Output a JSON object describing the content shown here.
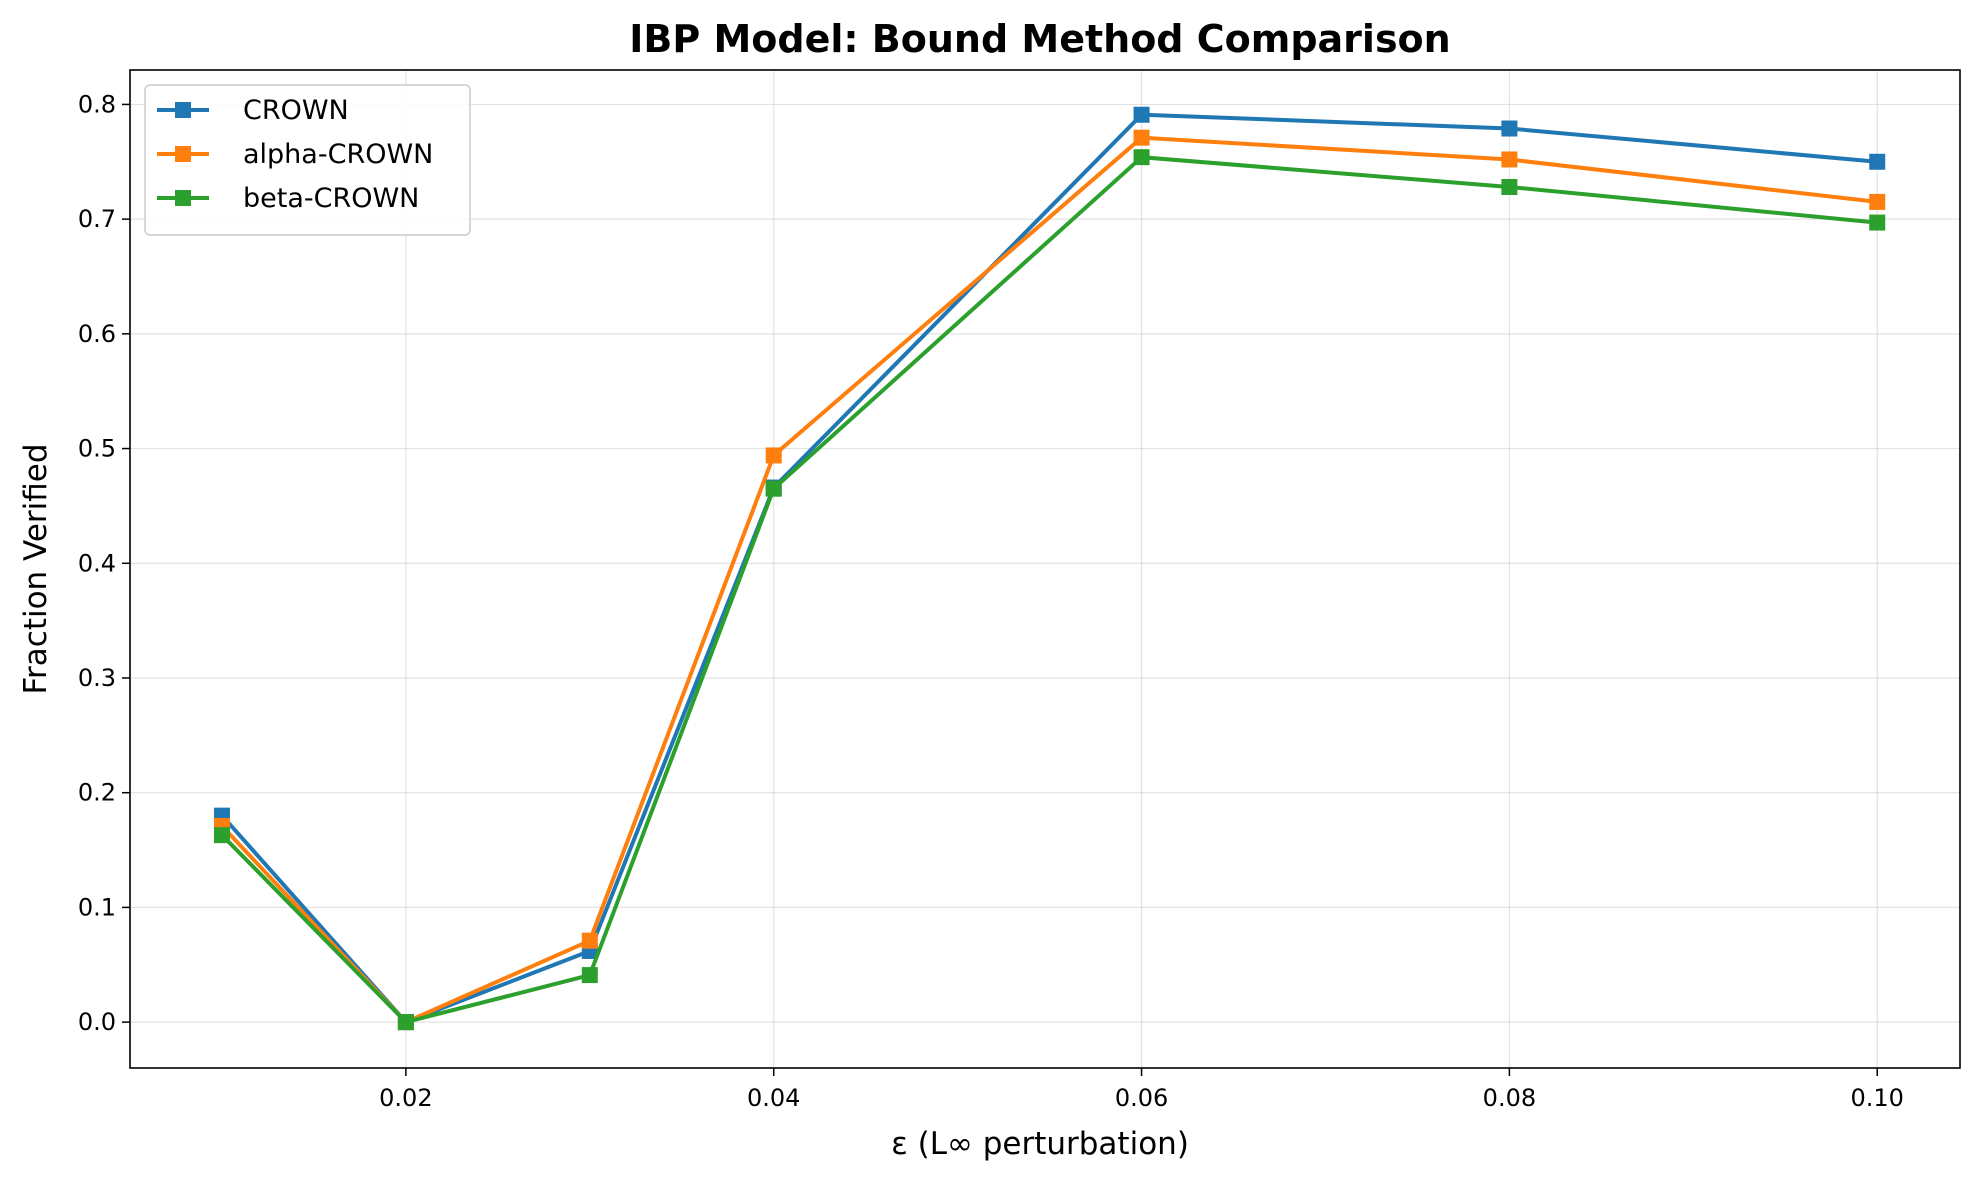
{
  "chart_data": {
    "type": "line",
    "title": "IBP Model: Bound Method Comparison",
    "xlabel": "ε (L∞ perturbation)",
    "ylabel": "Fraction Verified",
    "x": [
      0.01,
      0.02,
      0.03,
      0.04,
      0.06,
      0.08,
      0.1
    ],
    "xticks": [
      0.02,
      0.04,
      0.06,
      0.08,
      0.1
    ],
    "xtick_labels": [
      "0.02",
      "0.04",
      "0.06",
      "0.08",
      "0.10"
    ],
    "yticks": [
      0.0,
      0.1,
      0.2,
      0.3,
      0.4,
      0.5,
      0.6,
      0.7,
      0.8
    ],
    "ytick_labels": [
      "0.0",
      "0.1",
      "0.2",
      "0.3",
      "0.4",
      "0.5",
      "0.6",
      "0.7",
      "0.8"
    ],
    "xlim": [
      0.005,
      0.1045
    ],
    "ylim": [
      -0.04,
      0.83
    ],
    "grid": true,
    "legend_position": "top-left",
    "marker": "square",
    "series": [
      {
        "name": "CROWN",
        "color": "#1f77b4",
        "values": [
          0.18,
          0.0,
          0.062,
          0.466,
          0.791,
          0.779,
          0.75
        ]
      },
      {
        "name": "alpha-CROWN",
        "color": "#ff7f0e",
        "values": [
          0.171,
          0.0,
          0.071,
          0.494,
          0.771,
          0.752,
          0.715
        ]
      },
      {
        "name": "beta-CROWN",
        "color": "#2ca02c",
        "values": [
          0.163,
          0.0,
          0.041,
          0.465,
          0.754,
          0.728,
          0.697
        ]
      }
    ]
  }
}
